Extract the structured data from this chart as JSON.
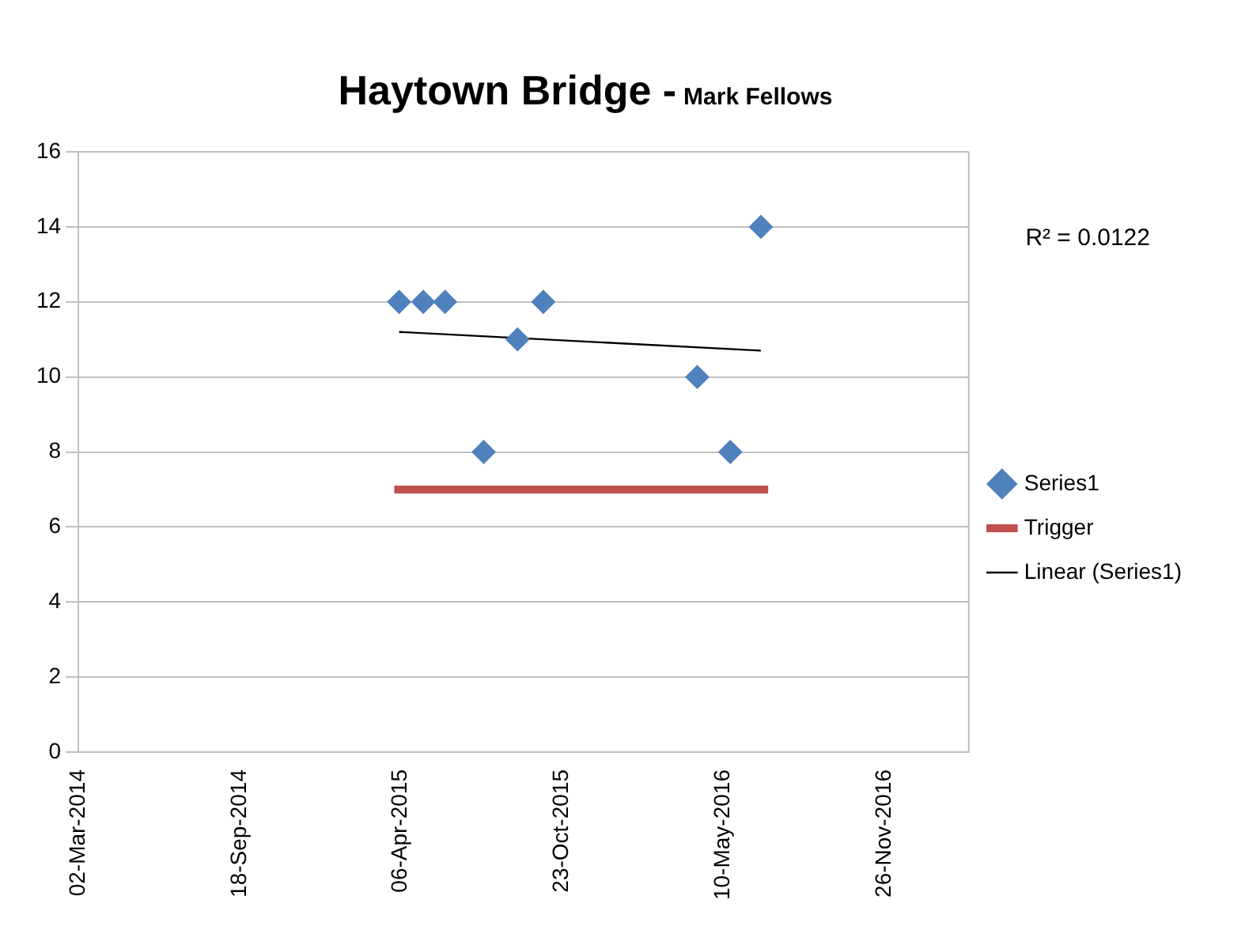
{
  "chart_data": {
    "type": "scatter",
    "title": "Haytown Bridge -",
    "subtitle": "Mark Fellows",
    "series": [
      {
        "name": "Series1",
        "color": "#4f81bd",
        "marker": "diamond",
        "x": [
          "2015-04-04",
          "2015-05-04",
          "2015-05-31",
          "2015-07-18",
          "2015-08-29",
          "2015-09-30",
          "2016-04-08",
          "2016-05-19",
          "2016-06-26"
        ],
        "values": [
          12,
          12,
          12,
          8,
          11,
          12,
          10,
          8,
          14
        ]
      },
      {
        "name": "Trigger",
        "type": "line",
        "color": "#c0504d",
        "marker": "none",
        "x": [
          "2015-03-29",
          "2016-07-05"
        ],
        "values": [
          7,
          7
        ]
      },
      {
        "name": "Linear (Series1)",
        "type": "line",
        "color": "#000000",
        "marker": "none",
        "x": [
          "2015-04-04",
          "2016-06-26"
        ],
        "values": [
          11.2,
          10.7
        ]
      }
    ],
    "xlim": [
      "2014-03-02",
      "2017-03-11"
    ],
    "xticks": [
      {
        "value": "2014-03-02",
        "label": "02-Mar-2014"
      },
      {
        "value": "2014-09-18",
        "label": "18-Sep-2014"
      },
      {
        "value": "2015-04-06",
        "label": "06-Apr-2015"
      },
      {
        "value": "2015-10-23",
        "label": "23-Oct-2015"
      },
      {
        "value": "2016-05-10",
        "label": "10-May-2016"
      },
      {
        "value": "2016-11-26",
        "label": "26-Nov-2016"
      }
    ],
    "ylim": [
      0,
      16
    ],
    "yticks": [
      0,
      2,
      4,
      6,
      8,
      10,
      12,
      14,
      16
    ],
    "grid": "y",
    "legend": "right",
    "line_style": "solid",
    "annotations": [
      "R² = 0.0122"
    ]
  }
}
